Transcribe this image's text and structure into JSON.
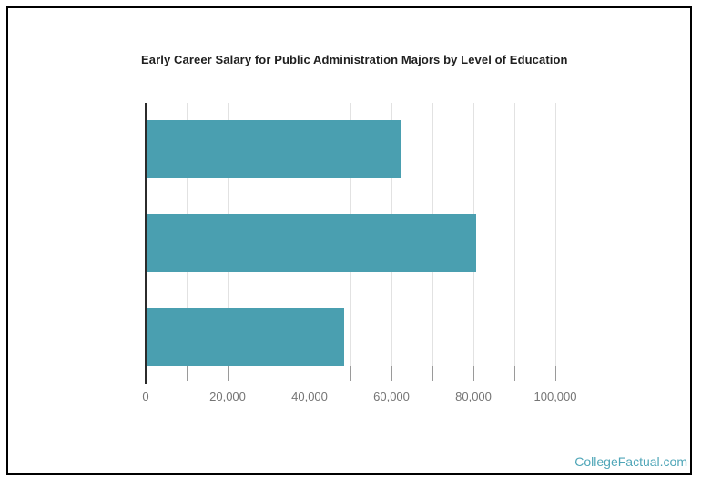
{
  "chart_data": {
    "type": "bar",
    "orientation": "horizontal",
    "title": "Early Career Salary for Public Administration Majors by Level of Education",
    "categories": [
      "",
      "",
      ""
    ],
    "values": [
      62000,
      80400,
      48200
    ],
    "xlim": [
      0,
      100000
    ],
    "x_major_ticks": [
      0,
      20000,
      40000,
      60000,
      80000,
      100000
    ],
    "x_tick_labels": [
      "0",
      "20,000",
      "40,000",
      "60,000",
      "80,000",
      "100,000"
    ],
    "x_minor_step": 10000,
    "grid": true,
    "legend": false,
    "xlabel": "",
    "ylabel": "",
    "bar_color": "#4A9FB0"
  },
  "footer": {
    "brand_label": "CollegeFactual.com",
    "brand_color": "#4FA6B8"
  },
  "colors": {
    "background": "#ffffff",
    "border": "#000000",
    "axis_line": "#2b2b2b",
    "gridline": "#e2e2e2",
    "tick": "#9a9a9a",
    "tick_label": "#757575",
    "title": "#1f1f1f"
  }
}
